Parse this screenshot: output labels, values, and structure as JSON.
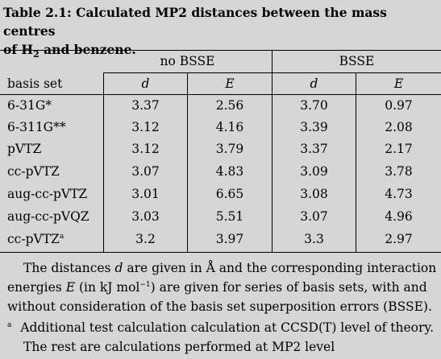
{
  "caption": {
    "label": "Table 2.1:",
    "text_line1": "Calculated MP2 distances between the mass centres",
    "text_line2_pre": "of H",
    "subscript": "2",
    "text_line2_post": "and benzene."
  },
  "table": {
    "group_headers": [
      "no BSSE",
      "BSSE"
    ],
    "row_header_label": "basis set",
    "column_headers": [
      "d",
      "E",
      "d",
      "E"
    ],
    "rows": [
      {
        "basis": "6-31G*",
        "marker": "",
        "values": [
          "3.37",
          "2.56",
          "3.70",
          "0.97"
        ]
      },
      {
        "basis": "6-311G**",
        "marker": "",
        "values": [
          "3.12",
          "4.16",
          "3.39",
          "2.08"
        ]
      },
      {
        "basis": "pVTZ",
        "marker": "",
        "values": [
          "3.12",
          "3.79",
          "3.37",
          "2.17"
        ]
      },
      {
        "basis": "cc-pVTZ",
        "marker": "",
        "values": [
          "3.07",
          "4.83",
          "3.09",
          "3.78"
        ]
      },
      {
        "basis": "aug-cc-pVTZ",
        "marker": "",
        "values": [
          "3.01",
          "6.65",
          "3.08",
          "4.73"
        ]
      },
      {
        "basis": "aug-cc-pVQZ",
        "marker": "",
        "values": [
          "3.03",
          "5.51",
          "3.07",
          "4.96"
        ]
      },
      {
        "basis": "cc-pVTZ",
        "marker": "a",
        "values": [
          "3.2",
          "3.97",
          "3.3",
          "2.97"
        ]
      }
    ]
  },
  "notes": {
    "line1_a": "The distances",
    "line1_var": "d",
    "line1_b": "are given in Å and the corresponding interaction",
    "line2_a": "energies",
    "line2_var": "E",
    "line2_b": "(in kJ mol",
    "line2_sup": "−1",
    "line2_c": ") are given for series of basis sets, with and",
    "line3": "without consideration of the basis set superposition errors (BSSE).",
    "footnote_marker": "a",
    "footnote_line1": "Additional test calculation calculation at CCSD(T) level of theory.",
    "footnote_line2": "The rest are calculations performed at MP2 level"
  }
}
